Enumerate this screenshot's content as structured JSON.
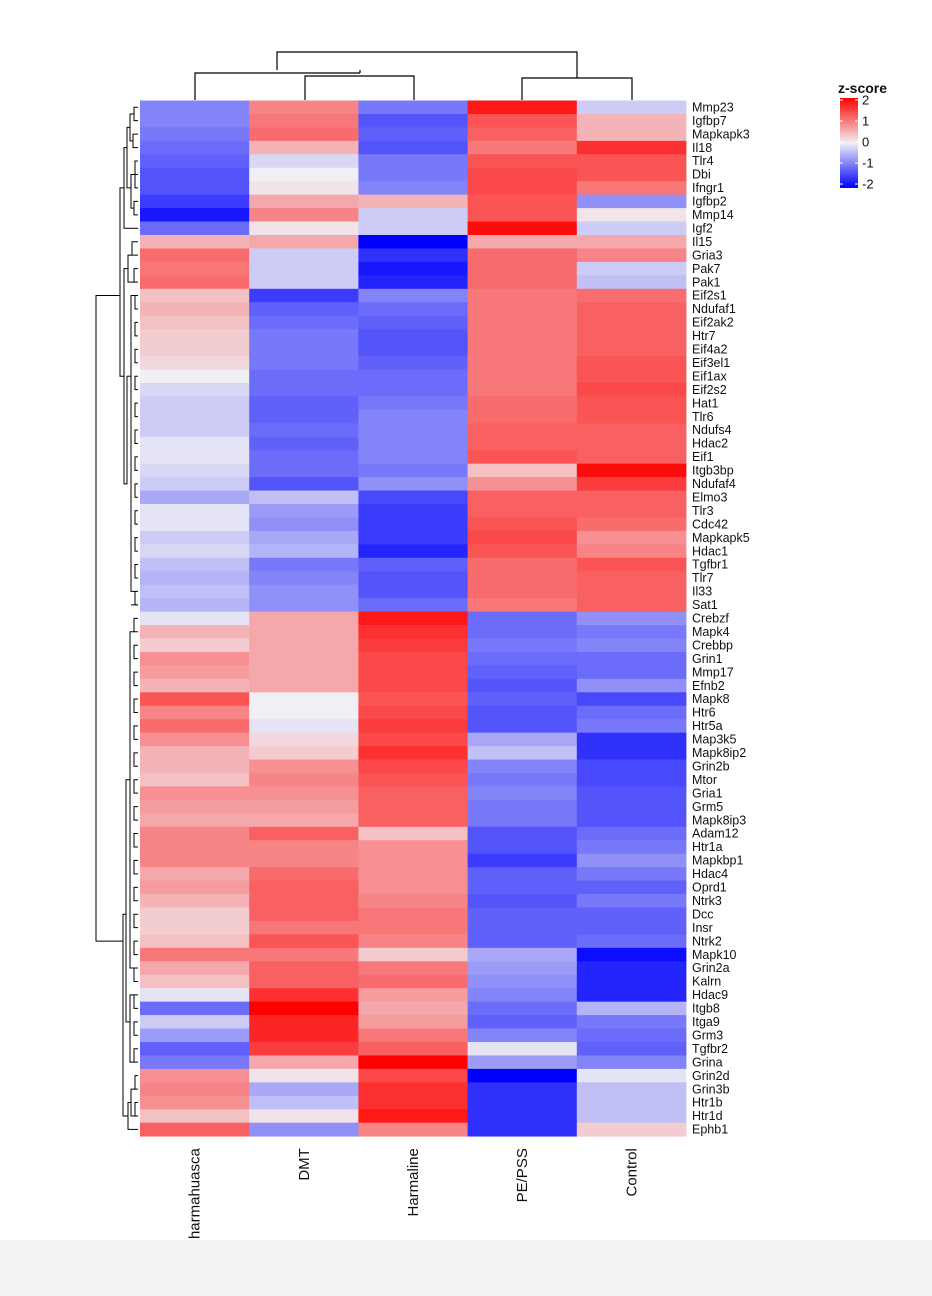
{
  "chart_data": {
    "type": "heatmap",
    "color_scale": {
      "title": "z-score",
      "ticks": [
        2,
        1,
        0,
        -1,
        -2
      ],
      "range": [
        -2,
        2
      ],
      "low_color": "#0000ff",
      "mid_color": "#f0f0f4",
      "high_color": "#ff0000"
    },
    "columns": [
      "Pharmahuasca",
      "DMT",
      "Harmaline",
      "PE/PSS",
      "Control"
    ],
    "rows": [
      "Mmp23",
      "Igfbp7",
      "Mapkapk3",
      "Il18",
      "Tlr4",
      "Dbi",
      "Ifngr1",
      "Igfbp2",
      "Mmp14",
      "Igf2",
      "Il15",
      "Gria3",
      "Pak7",
      "Pak1",
      "Eif2s1",
      "Ndufaf1",
      "Eif2ak2",
      "Htr7",
      "Eif4a2",
      "Eif3el1",
      "Eif1ax",
      "Eif2s2",
      "Hat1",
      "Tlr6",
      "Ndufs4",
      "Hdac2",
      "Eif1",
      "Itgb3bp",
      "Ndufaf4",
      "Elmo3",
      "Tlr3",
      "Cdc42",
      "Mapkapk5",
      "Hdac1",
      "Tgfbr1",
      "Tlr7",
      "Il33",
      "Sat1",
      "Crebzf",
      "Mapk4",
      "Crebbp",
      "Grin1",
      "Mmp17",
      "Efnb2",
      "Mapk8",
      "Htr6",
      "Htr5a",
      "Map3k5",
      "Mapk8ip2",
      "Grin2b",
      "Mtor",
      "Gria1",
      "Grm5",
      "Mapk8ip3",
      "Adam12",
      "Htr1a",
      "Mapkbp1",
      "Hdac4",
      "Oprd1",
      "Ntrk3",
      "Dcc",
      "Insr",
      "Ntrk2",
      "Mapk10",
      "Grin2a",
      "Kalrn",
      "Hdac9",
      "Itgb8",
      "Itga9",
      "Grm3",
      "Tgfbr2",
      "Grina",
      "Grin2d",
      "Grin3b",
      "Htr1b",
      "Htr1d",
      "Ephb1"
    ],
    "values": [
      [
        -0.9,
        0.9,
        -1.0,
        1.8,
        -0.3
      ],
      [
        -0.9,
        1.0,
        -1.3,
        1.3,
        0.5
      ],
      [
        -1.0,
        1.1,
        -1.2,
        1.2,
        0.5
      ],
      [
        -1.1,
        0.5,
        -1.3,
        1.0,
        1.6
      ],
      [
        -1.2,
        -0.2,
        -1.0,
        1.3,
        1.3
      ],
      [
        -1.3,
        0.0,
        -1.0,
        1.4,
        1.3
      ],
      [
        -1.3,
        0.1,
        -0.9,
        1.4,
        1.0
      ],
      [
        -1.5,
        0.6,
        0.5,
        1.3,
        -0.8
      ],
      [
        -1.8,
        0.9,
        -0.3,
        1.3,
        0.1
      ],
      [
        -1.1,
        0.1,
        -0.3,
        1.9,
        -0.3
      ],
      [
        0.5,
        0.6,
        -2.0,
        0.6,
        0.6
      ],
      [
        1.1,
        -0.3,
        -1.6,
        1.1,
        0.9
      ],
      [
        1.0,
        -0.3,
        -1.8,
        1.1,
        -0.3
      ],
      [
        1.1,
        -0.3,
        -1.7,
        1.1,
        -0.4
      ],
      [
        0.4,
        -1.5,
        -0.9,
        1.0,
        1.1
      ],
      [
        0.5,
        -1.2,
        -1.1,
        1.0,
        1.2
      ],
      [
        0.4,
        -1.1,
        -1.2,
        1.0,
        1.2
      ],
      [
        0.3,
        -1.0,
        -1.3,
        1.0,
        1.2
      ],
      [
        0.3,
        -1.0,
        -1.3,
        1.0,
        1.2
      ],
      [
        0.2,
        -1.0,
        -1.2,
        1.0,
        1.3
      ],
      [
        0.0,
        -1.1,
        -1.1,
        1.0,
        1.3
      ],
      [
        -0.2,
        -1.1,
        -1.1,
        1.0,
        1.4
      ],
      [
        -0.3,
        -1.2,
        -1.0,
        1.1,
        1.3
      ],
      [
        -0.3,
        -1.2,
        -0.9,
        1.1,
        1.3
      ],
      [
        -0.3,
        -1.1,
        -0.9,
        1.2,
        1.2
      ],
      [
        -0.1,
        -1.2,
        -0.9,
        1.2,
        1.2
      ],
      [
        -0.1,
        -1.1,
        -0.9,
        1.3,
        1.2
      ],
      [
        -0.2,
        -1.1,
        -1.0,
        0.4,
        1.9
      ],
      [
        -0.3,
        -1.3,
        -0.8,
        0.8,
        1.5
      ],
      [
        -0.6,
        -0.4,
        -1.4,
        1.2,
        1.2
      ],
      [
        -0.1,
        -0.7,
        -1.5,
        1.2,
        1.2
      ],
      [
        -0.1,
        -0.8,
        -1.5,
        1.3,
        1.1
      ],
      [
        -0.3,
        -0.6,
        -1.5,
        1.4,
        0.8
      ],
      [
        -0.2,
        -0.5,
        -1.7,
        1.3,
        0.9
      ],
      [
        -0.4,
        -1.0,
        -1.2,
        1.1,
        1.3
      ],
      [
        -0.5,
        -0.9,
        -1.3,
        1.1,
        1.2
      ],
      [
        -0.4,
        -0.8,
        -1.3,
        1.1,
        1.2
      ],
      [
        -0.5,
        -0.8,
        -1.1,
        1.0,
        1.2
      ],
      [
        -0.1,
        0.6,
        1.8,
        -1.1,
        -0.8
      ],
      [
        0.5,
        0.6,
        1.6,
        -1.1,
        -1.0
      ],
      [
        0.3,
        0.6,
        1.5,
        -1.0,
        -0.9
      ],
      [
        0.8,
        0.6,
        1.4,
        -1.1,
        -1.1
      ],
      [
        0.7,
        0.6,
        1.4,
        -1.2,
        -1.1
      ],
      [
        0.5,
        0.6,
        1.4,
        -1.3,
        -0.8
      ],
      [
        1.3,
        0.0,
        1.3,
        -1.2,
        -1.4
      ],
      [
        0.9,
        0.0,
        1.4,
        -1.3,
        -1.1
      ],
      [
        1.1,
        -0.1,
        1.5,
        -1.3,
        -1.0
      ],
      [
        0.8,
        0.2,
        1.4,
        -0.6,
        -1.6
      ],
      [
        0.5,
        0.3,
        1.6,
        -0.4,
        -1.6
      ],
      [
        0.5,
        0.8,
        1.4,
        -0.9,
        -1.4
      ],
      [
        0.4,
        0.9,
        1.3,
        -1.0,
        -1.4
      ],
      [
        0.8,
        0.8,
        1.2,
        -0.9,
        -1.3
      ],
      [
        0.7,
        0.7,
        1.2,
        -1.0,
        -1.3
      ],
      [
        0.6,
        0.6,
        1.2,
        -1.0,
        -1.3
      ],
      [
        0.9,
        1.2,
        0.4,
        -1.3,
        -1.1
      ],
      [
        0.9,
        0.9,
        0.8,
        -1.3,
        -1.0
      ],
      [
        0.9,
        0.9,
        0.8,
        -1.5,
        -0.8
      ],
      [
        0.6,
        1.1,
        0.8,
        -1.2,
        -1.0
      ],
      [
        0.7,
        1.2,
        0.8,
        -1.2,
        -1.2
      ],
      [
        0.5,
        1.2,
        0.9,
        -1.3,
        -1.0
      ],
      [
        0.3,
        1.2,
        1.0,
        -1.2,
        -1.2
      ],
      [
        0.3,
        1.0,
        1.0,
        -1.2,
        -1.2
      ],
      [
        0.4,
        1.3,
        0.9,
        -1.2,
        -1.1
      ],
      [
        1.0,
        1.0,
        0.3,
        -0.6,
        -1.9
      ],
      [
        0.6,
        1.2,
        1.0,
        -0.7,
        -1.7
      ],
      [
        0.4,
        1.2,
        1.1,
        -0.8,
        -1.7
      ],
      [
        -0.1,
        1.6,
        0.7,
        -0.9,
        -1.7
      ],
      [
        -1.1,
        2.0,
        0.6,
        -1.1,
        -0.5
      ],
      [
        -0.3,
        1.7,
        0.7,
        -1.2,
        -1.0
      ],
      [
        -0.7,
        1.7,
        1.0,
        -0.9,
        -1.1
      ],
      [
        -1.2,
        1.5,
        1.2,
        -0.1,
        -1.2
      ],
      [
        -1.0,
        0.6,
        2.0,
        -0.7,
        -0.9
      ],
      [
        0.8,
        0.1,
        1.4,
        -2.0,
        -0.1
      ],
      [
        0.9,
        -0.6,
        1.6,
        -1.6,
        -0.4
      ],
      [
        0.8,
        -0.4,
        1.6,
        -1.6,
        -0.4
      ],
      [
        0.4,
        0.1,
        1.8,
        -1.6,
        -0.4
      ],
      [
        1.2,
        -0.8,
        0.9,
        -1.6,
        0.3
      ]
    ]
  }
}
